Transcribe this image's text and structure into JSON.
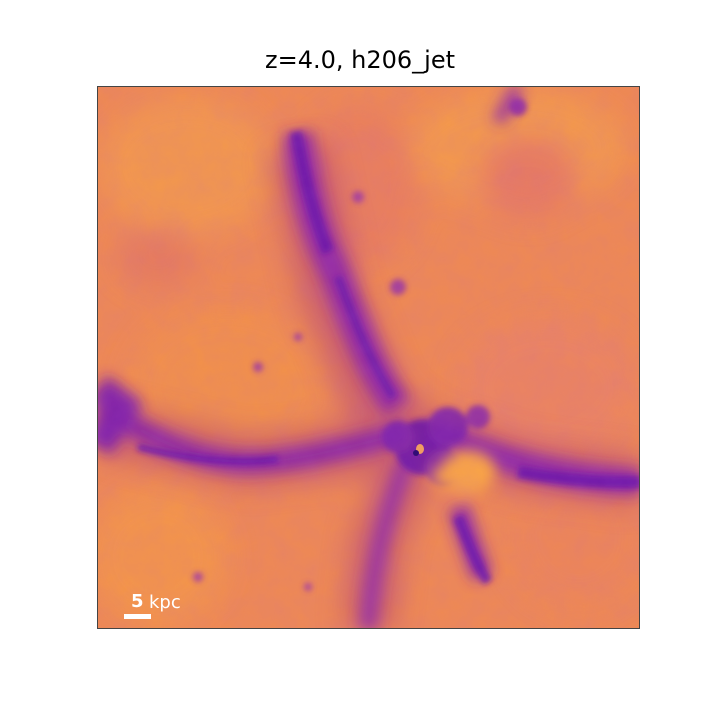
{
  "title": "z=4.0, h206_jet",
  "scale_bar": {
    "value": "5",
    "unit": "kpc"
  },
  "colors": {
    "background_warm": "#f0874e",
    "bright_core": "#f9a445",
    "filament_purple": "#7a1fb0",
    "dark_purple": "#3c0a80"
  }
}
